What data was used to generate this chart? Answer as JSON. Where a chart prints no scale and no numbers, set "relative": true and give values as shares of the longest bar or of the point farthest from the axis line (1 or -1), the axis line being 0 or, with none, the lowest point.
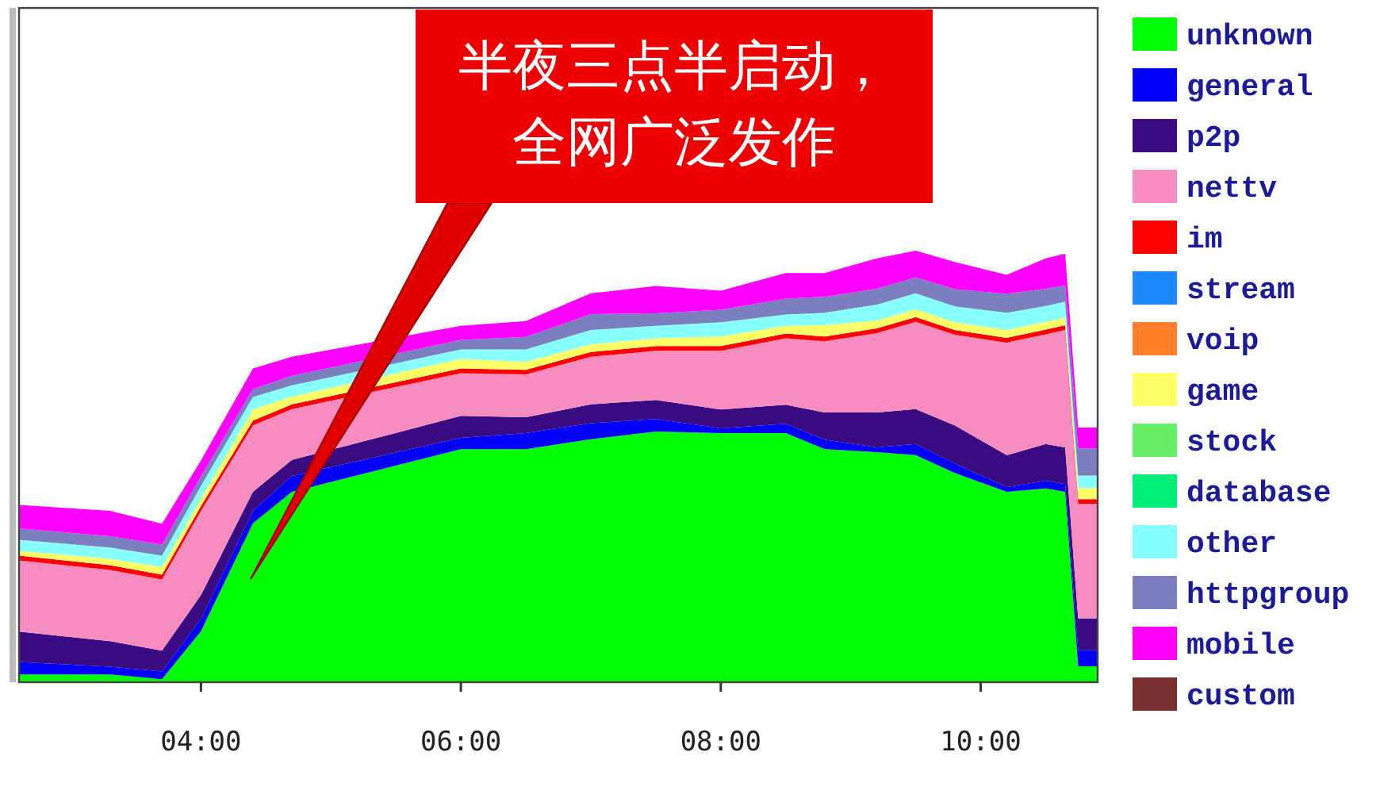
{
  "chart_data": {
    "type": "area",
    "stacked": true,
    "relative": true,
    "legend": "right",
    "x": [
      2.6,
      3.3,
      3.7,
      4.0,
      4.4,
      4.7,
      6.0,
      6.5,
      7.0,
      7.5,
      8.0,
      8.5,
      8.8,
      9.2,
      9.5,
      9.8,
      10.2,
      10.5,
      10.65,
      10.75,
      10.9
    ],
    "xlim": [
      2.6,
      10.9
    ],
    "xticks": [
      {
        "value": 4,
        "label": "04:00"
      },
      {
        "value": 6,
        "label": "06:00"
      },
      {
        "value": 8,
        "label": "08:00"
      },
      {
        "value": 10,
        "label": "10:00"
      }
    ],
    "annotations": [
      "半夜三点半启动，全网广泛发作"
    ],
    "series": [
      {
        "name": "unknown",
        "color": "#00ff00",
        "values": [
          0.018,
          0.018,
          0.007,
          0.118,
          0.368,
          0.441,
          0.54,
          0.54,
          0.563,
          0.581,
          0.577,
          0.577,
          0.54,
          0.533,
          0.526,
          0.485,
          0.441,
          0.449,
          0.441,
          0.037,
          0.037
        ]
      },
      {
        "name": "general",
        "color": "#0000ff",
        "values": [
          0.029,
          0.018,
          0.018,
          0.029,
          0.029,
          0.037,
          0.026,
          0.037,
          0.037,
          0.029,
          0.011,
          0.022,
          0.022,
          0.011,
          0.026,
          0.022,
          0.011,
          0.018,
          0.018,
          0.037,
          0.037
        ]
      },
      {
        "name": "p2p",
        "color": "#3a0a80",
        "values": [
          0.07,
          0.059,
          0.048,
          0.055,
          0.044,
          0.037,
          0.051,
          0.037,
          0.044,
          0.044,
          0.044,
          0.044,
          0.063,
          0.081,
          0.081,
          0.088,
          0.074,
          0.085,
          0.085,
          0.074,
          0.074
        ]
      },
      {
        "name": "nettv",
        "color": "#f78cc0",
        "values": [
          0.165,
          0.165,
          0.165,
          0.195,
          0.154,
          0.118,
          0.099,
          0.099,
          0.11,
          0.114,
          0.136,
          0.154,
          0.165,
          0.184,
          0.202,
          0.21,
          0.261,
          0.254,
          0.272,
          0.265,
          0.265
        ]
      },
      {
        "name": "im",
        "color": "#ff0000",
        "values": [
          0.011,
          0.011,
          0.011,
          0.011,
          0.011,
          0.011,
          0.011,
          0.011,
          0.011,
          0.011,
          0.011,
          0.011,
          0.011,
          0.011,
          0.011,
          0.011,
          0.011,
          0.011,
          0.011,
          0.011,
          0.011
        ]
      },
      {
        "name": "stream",
        "color": "#1e88ff",
        "values": [
          null,
          null,
          null,
          null,
          null,
          null,
          null,
          null,
          null,
          null,
          null,
          null,
          null,
          null,
          null,
          null,
          null,
          null,
          null,
          null,
          null
        ]
      },
      {
        "name": "voip",
        "color": "#ff7f2a",
        "values": [
          null,
          null,
          null,
          null,
          null,
          null,
          null,
          null,
          null,
          null,
          null,
          null,
          null,
          null,
          null,
          null,
          null,
          null,
          null,
          null,
          null
        ]
      },
      {
        "name": "game",
        "color": "#ffff66",
        "values": [
          0.011,
          0.015,
          0.018,
          0.018,
          0.026,
          0.018,
          0.022,
          0.018,
          0.018,
          0.018,
          0.022,
          0.018,
          0.026,
          0.018,
          0.018,
          0.018,
          0.018,
          0.018,
          0.018,
          0.026,
          0.026
        ]
      },
      {
        "name": "stock",
        "color": "#66ee66",
        "values": [
          null,
          null,
          null,
          null,
          null,
          null,
          null,
          null,
          null,
          null,
          null,
          null,
          null,
          null,
          null,
          null,
          null,
          null,
          null,
          null,
          null
        ]
      },
      {
        "name": "database",
        "color": "#00ee77",
        "values": [
          null,
          null,
          null,
          null,
          null,
          null,
          null,
          null,
          null,
          null,
          null,
          null,
          null,
          null,
          null,
          null,
          null,
          null,
          null,
          null,
          null
        ]
      },
      {
        "name": "other",
        "color": "#88ffff",
        "values": [
          0.026,
          0.026,
          0.026,
          0.029,
          0.029,
          0.026,
          0.022,
          0.029,
          0.033,
          0.029,
          0.033,
          0.026,
          0.029,
          0.037,
          0.037,
          0.037,
          0.04,
          0.037,
          0.037,
          0.029,
          0.029
        ]
      },
      {
        "name": "httpgroup",
        "color": "#7b7fbf",
        "values": [
          0.026,
          0.026,
          0.026,
          0.022,
          0.018,
          0.022,
          0.022,
          0.029,
          0.037,
          0.029,
          0.029,
          0.037,
          0.037,
          0.037,
          0.037,
          0.04,
          0.044,
          0.04,
          0.037,
          0.063,
          0.063
        ]
      },
      {
        "name": "mobile",
        "color": "#ff00ff",
        "values": [
          0.055,
          0.059,
          0.048,
          0.037,
          0.048,
          0.044,
          0.033,
          0.037,
          0.048,
          0.063,
          0.044,
          0.059,
          0.055,
          0.07,
          0.062,
          0.063,
          0.044,
          0.07,
          0.074,
          0.048,
          0.048
        ]
      },
      {
        "name": "custom",
        "color": "#7a3030",
        "values": [
          null,
          null,
          null,
          null,
          null,
          null,
          null,
          null,
          null,
          null,
          null,
          null,
          null,
          null,
          null,
          null,
          null,
          null,
          null,
          null,
          null
        ]
      }
    ]
  }
}
